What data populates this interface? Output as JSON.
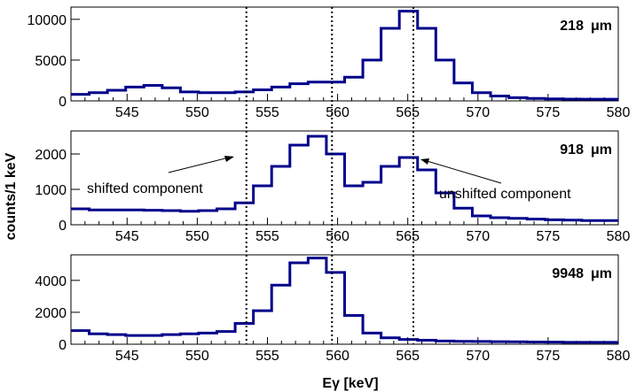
{
  "colors": {
    "histogram": "#00008b",
    "frame": "#000000",
    "marker_line": "#000000"
  },
  "chart_data": {
    "type": "histogram",
    "xlabel": "Eγ [keV]",
    "ylabel": "counts/1 keV",
    "xlim": [
      541,
      580
    ],
    "x_ticks": [
      545,
      550,
      555,
      560,
      565,
      570,
      575,
      580
    ],
    "bin_edges": [
      541,
      542.3,
      543.6,
      544.9,
      546.2,
      547.5,
      548.8,
      550.1,
      551.4,
      552.7,
      554.0,
      555.3,
      556.6,
      557.9,
      559.2,
      560.5,
      561.8,
      563.1,
      564.4,
      565.7,
      567.0,
      568.3,
      569.6,
      570.9,
      572.2,
      573.5,
      574.8,
      576.1,
      577.4,
      578.7,
      580.0
    ],
    "vertical_markers": [
      553.5,
      559.6,
      565.4
    ],
    "panels": [
      {
        "label": "218",
        "unit": "μm",
        "ylim": [
          0,
          11500
        ],
        "y_ticks": [
          0,
          5000,
          10000
        ],
        "values": [
          800,
          1000,
          1300,
          1700,
          1900,
          1600,
          1100,
          1000,
          1000,
          1100,
          1350,
          1700,
          2100,
          2300,
          2300,
          2900,
          5000,
          8900,
          11000,
          8900,
          5000,
          2200,
          1000,
          600,
          400,
          300,
          250,
          220,
          200,
          200
        ]
      },
      {
        "label": "918",
        "unit": "μm",
        "ylim": [
          0,
          2650
        ],
        "y_ticks": [
          0,
          1000,
          2000
        ],
        "values": [
          450,
          420,
          420,
          420,
          410,
          400,
          380,
          400,
          450,
          620,
          1100,
          1650,
          2250,
          2500,
          2000,
          1100,
          1200,
          1650,
          1900,
          1550,
          900,
          470,
          250,
          200,
          180,
          160,
          140,
          130,
          120,
          120
        ],
        "annotations": [
          "shifted component",
          "unshifted component"
        ]
      },
      {
        "label": "9948",
        "unit": "μm",
        "ylim": [
          0,
          5600
        ],
        "y_ticks": [
          0,
          2000,
          4000
        ],
        "values": [
          850,
          650,
          600,
          550,
          550,
          600,
          650,
          700,
          800,
          1300,
          2100,
          3700,
          5100,
          5400,
          4500,
          1800,
          700,
          400,
          300,
          250,
          200,
          180,
          170,
          160,
          150,
          140,
          130,
          120,
          120,
          120
        ]
      }
    ]
  }
}
